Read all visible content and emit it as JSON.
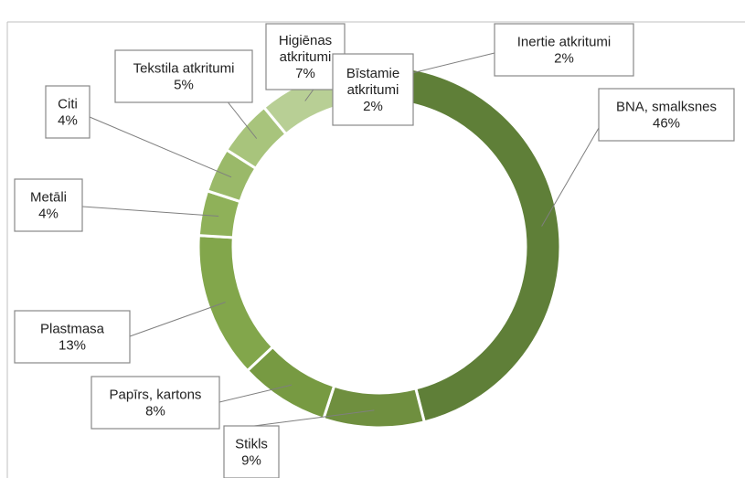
{
  "chart_data": {
    "type": "pie",
    "donut": true,
    "title": "",
    "start_angle_deg": 0,
    "direction": "clockwise",
    "colors": [
      "#5f7f38",
      "#6f8f3f",
      "#779a42",
      "#82a64b",
      "#8fb159",
      "#9ab969",
      "#a8c47c",
      "#b8cf95",
      "#c9dcae",
      "#a9b89a"
    ],
    "slices": [
      {
        "name": "BNA, smalksnes",
        "percent_label": "46%",
        "value": 46
      },
      {
        "name": "Stikls",
        "percent_label": "9%",
        "value": 9
      },
      {
        "name": "Papīrs, kartons",
        "percent_label": "8%",
        "value": 8
      },
      {
        "name": "Plastmasa",
        "percent_label": "13%",
        "value": 13
      },
      {
        "name": "Metāli",
        "percent_label": "4%",
        "value": 4
      },
      {
        "name": "Citi",
        "percent_label": "4%",
        "value": 4
      },
      {
        "name": "Tekstila atkritumi",
        "percent_label": "5%",
        "value": 5
      },
      {
        "name": "Higiēnas atkritumi",
        "percent_label": "7%",
        "value": 7
      },
      {
        "name": "Bīstamie atkritumi",
        "percent_label": "2%",
        "value": 2
      },
      {
        "name": "Inertie atkritumi",
        "percent_label": "2%",
        "value": 2
      }
    ]
  }
}
